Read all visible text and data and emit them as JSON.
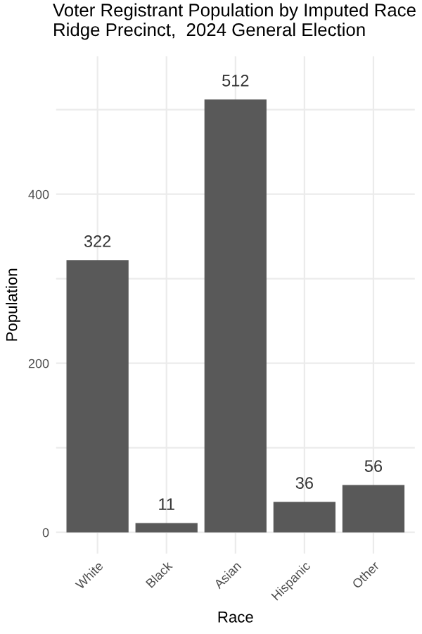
{
  "chart_data": {
    "type": "bar",
    "title": "Voter Registrant Population by Imputed Race\nRidge Precinct,  2024 General Election",
    "xlabel": "Race",
    "ylabel": "Population",
    "categories": [
      "White",
      "Black",
      "Asian",
      "Hispanic",
      "Other"
    ],
    "values": [
      322,
      11,
      512,
      36,
      56
    ],
    "color": "#595959",
    "data_labels": true,
    "ylim": [
      -25,
      563
    ],
    "yticks": [
      0,
      {
        "value": 100,
        "label": null
      },
      200,
      {
        "value": 300,
        "label": null
      },
      400,
      {
        "value": 500,
        "label": null
      }
    ],
    "grid": true
  }
}
